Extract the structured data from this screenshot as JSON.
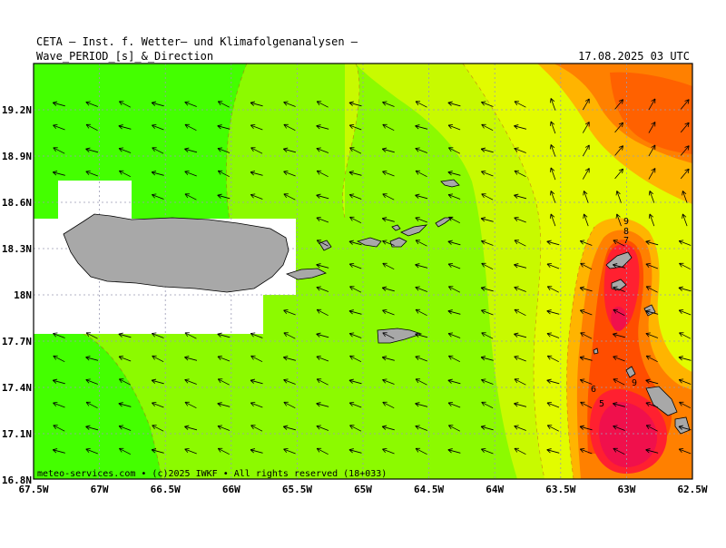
{
  "header": {
    "line1": "CETA — Inst. f. Wetter— und Klimafolgenanalysen —",
    "line2": "Wave_PERIOD_[s]_&_Direction",
    "datetime": "17.08.2025 03 UTC"
  },
  "footer": {
    "credit": "meteo-services.com • (c)2025 IWKF • All rights reserved (18+033)"
  },
  "axes": {
    "x_ticks": [
      "67.5W",
      "67W",
      "66.5W",
      "66W",
      "65.5W",
      "65W",
      "64.5W",
      "64W",
      "63.5W",
      "63W",
      "62.5W"
    ],
    "y_ticks": [
      "19.2N",
      "18.9N",
      "18.6N",
      "18.3N",
      "18N",
      "17.7N",
      "17.4N",
      "17.1N",
      "16.8N"
    ]
  },
  "contour_labels": [
    "9",
    "8",
    "7",
    "6",
    "9",
    "6",
    "5"
  ],
  "colors": {
    "green_bright": "#44ff00",
    "green_mid": "#8cfa00",
    "yellow_green": "#c8fa00",
    "yellow": "#e2fc00",
    "orange_light": "#ffb400",
    "orange": "#ff8000",
    "orange_red": "#ff4d00",
    "red": "#ff2030",
    "crimson": "#f0104c",
    "land": "#a8a8a8"
  }
}
